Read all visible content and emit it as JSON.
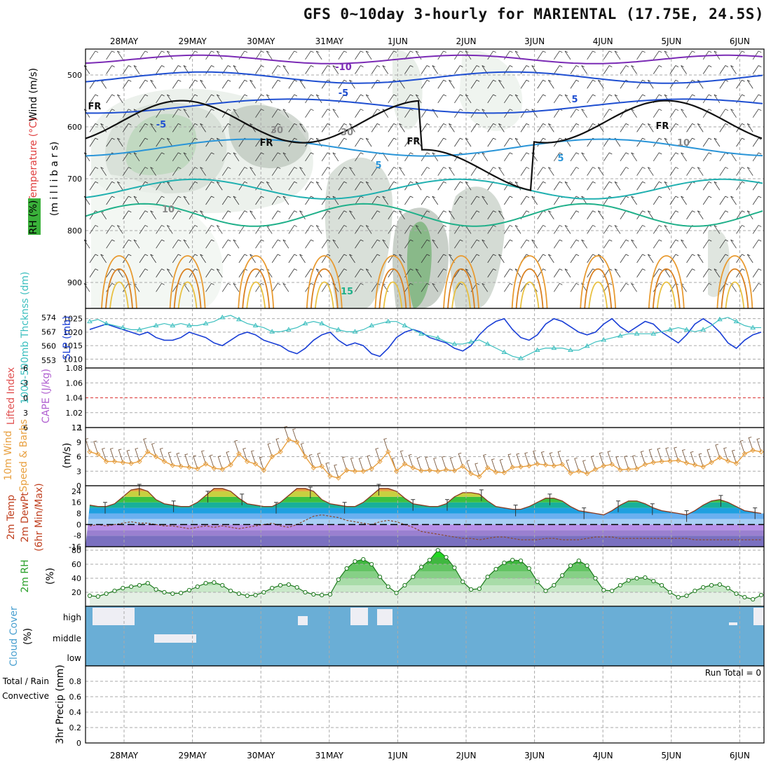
{
  "title": "GFS 0~10day 3-hourly for MARIENTAL (17.75E, 24.5S)",
  "dates": [
    "28MAY",
    "29MAY",
    "30MAY",
    "31MAY",
    "1JUN",
    "2JUN",
    "3JUN",
    "4JUN",
    "5JUN",
    "6JUN"
  ],
  "colors": {
    "grid": "#aaaaaa",
    "slp": "#1a3fd6",
    "thick": "#3cbfbf",
    "wind10": "#e8a040",
    "barb": "#7a5a40",
    "rh": "#2aa02a",
    "cloud": "#6aaed6",
    "cape": "#e05050",
    "freeze": "#111111"
  },
  "chart_data": [
    {
      "type": "contour",
      "panel": "upper-air",
      "labels": {
        "wind": "Wind (m/s)",
        "temp": "Temperature (°C)",
        "rh": "RH (%)",
        "pressure": "(m i l l i b a r s)"
      },
      "yticks": [
        "500",
        "600",
        "700",
        "800",
        "900"
      ],
      "ylim": [
        950,
        450
      ],
      "contour_labels": [
        "-10",
        "-5",
        "-5",
        "5",
        "5",
        "FR",
        "FR",
        "FR",
        "FR",
        "30",
        "30",
        "10",
        "10",
        "15",
        "5"
      ]
    },
    {
      "type": "line",
      "panel": "slp-thickness",
      "labels": {
        "left": "1000-500mb Thcknss (dm)",
        "right": "SLP (mb)"
      },
      "yticks_left": [
        "574",
        "567",
        "560",
        "553"
      ],
      "yticks_right": [
        "1025",
        "1020",
        "1015",
        "1010"
      ],
      "ylim_slp": [
        1008,
        1027
      ],
      "ylim_thick": [
        551,
        576
      ],
      "series": [
        {
          "name": "SLP (mb)",
          "values": [
            1021,
            1022,
            1023,
            1022,
            1021,
            1020,
            1019,
            1020,
            1018,
            1017,
            1017,
            1018,
            1020,
            1019,
            1018,
            1016,
            1015,
            1017,
            1019,
            1020,
            1019,
            1017,
            1016,
            1015,
            1013,
            1012,
            1014,
            1017,
            1019,
            1020,
            1017,
            1015,
            1016,
            1015,
            1012,
            1011,
            1014,
            1018,
            1020,
            1021,
            1020,
            1018,
            1017,
            1016,
            1014,
            1013,
            1015,
            1019,
            1022,
            1024,
            1025,
            1021,
            1018,
            1017,
            1019,
            1023,
            1025,
            1024,
            1022,
            1020,
            1019,
            1020,
            1023,
            1025,
            1022,
            1020,
            1022,
            1024,
            1023,
            1020,
            1018,
            1016,
            1019,
            1023,
            1025,
            1023,
            1020,
            1016,
            1014,
            1017,
            1019,
            1020
          ]
        },
        {
          "name": "Thickness (dm)",
          "values": [
            572,
            573,
            571,
            570,
            569,
            568,
            568,
            569,
            570,
            571,
            570,
            571,
            570,
            570,
            571,
            572,
            574,
            575,
            573,
            571,
            570,
            569,
            567,
            567,
            568,
            569,
            571,
            572,
            571,
            569,
            568,
            567,
            567,
            568,
            570,
            571,
            572,
            572,
            570,
            568,
            566,
            565,
            564,
            562,
            561,
            561,
            562,
            563,
            561,
            559,
            557,
            555,
            554,
            556,
            558,
            559,
            559,
            559,
            558,
            558,
            560,
            562,
            563,
            564,
            565,
            566,
            566,
            566,
            566,
            567,
            568,
            569,
            568,
            567,
            568,
            570,
            573,
            574,
            572,
            570,
            569,
            569
          ]
        }
      ]
    },
    {
      "type": "line",
      "panel": "instability",
      "labels": {
        "left": "Lifted Index",
        "right": "CAPE (J/kg)"
      },
      "yticks_left": [
        "-6",
        "-3",
        "0",
        "3",
        "6"
      ],
      "yticks_right": [
        "1.08",
        "1.06",
        "1.04",
        "1.02",
        "1"
      ],
      "series": [
        {
          "name": "Lifted Index",
          "values": [
            0
          ]
        }
      ]
    },
    {
      "type": "line",
      "panel": "wind10m",
      "labels": {
        "main": "10m Wind",
        "sub": "Speed & Barbs",
        "unit": "(m/s)"
      },
      "yticks": [
        "12",
        "9",
        "6",
        "3",
        "0"
      ],
      "ylim": [
        0,
        12
      ],
      "series": [
        {
          "name": "Speed",
          "values": [
            7,
            6.5,
            5,
            5,
            4.8,
            4.6,
            5,
            7,
            6,
            5,
            4.2,
            4,
            3.8,
            3.5,
            4.5,
            3.6,
            3.4,
            4.3,
            6.6,
            5,
            4.5,
            3.2,
            6,
            7,
            9.5,
            9,
            6,
            3.7,
            4,
            2,
            1.6,
            3.2,
            3,
            3,
            3.5,
            5,
            7,
            3,
            4.5,
            3.7,
            3.1,
            3.2,
            3,
            3.3,
            3.1,
            4,
            2.5,
            1.9,
            3.7,
            2.8,
            2.7,
            3.8,
            3.9,
            4.1,
            4.5,
            4.3,
            4.1,
            4.4,
            2.6,
            3,
            2.5,
            3.4,
            4.1,
            4.4,
            3.3,
            3.4,
            3.5,
            4.4,
            4.8,
            5,
            5.1,
            5.2,
            4.7,
            4.3,
            3.9,
            4.8,
            5.8,
            5.1,
            4.6,
            6.6,
            7.3,
            7
          ]
        }
      ]
    },
    {
      "type": "area",
      "panel": "temperature",
      "labels": {
        "main": "2m Temp",
        "sub": "2m DewPt",
        "sub2": "(6hr Min/Max)"
      },
      "yticks": [
        "24",
        "16",
        "8",
        "0",
        "-8",
        "-16"
      ],
      "ylim": [
        -16,
        28
      ],
      "series": [
        {
          "name": "2m Temp",
          "values": [
            14,
            13,
            13,
            15,
            20,
            25,
            26,
            24,
            18,
            15,
            14,
            13,
            13,
            16,
            21,
            26,
            26,
            24,
            19,
            15,
            14,
            13,
            13,
            16,
            21,
            26,
            26,
            24,
            18,
            15,
            14,
            13,
            13,
            16,
            21,
            26,
            26,
            24,
            19,
            15,
            14,
            13,
            13,
            15,
            20,
            23,
            23,
            22,
            17,
            13,
            12,
            11,
            11,
            13,
            16,
            19,
            19,
            17,
            13,
            10,
            9,
            8,
            7,
            10,
            14,
            17,
            17,
            15,
            12,
            10,
            9,
            8,
            7,
            10,
            14,
            17,
            18,
            16,
            13,
            10,
            9,
            8
          ]
        },
        {
          "name": "2m DewPt",
          "values": [
            -1,
            0,
            -1,
            0,
            1,
            2,
            1,
            1,
            0,
            -1,
            -1,
            -2,
            -3,
            -2,
            -1,
            -2,
            -1,
            -2,
            -3,
            -2,
            -1,
            0,
            1,
            -1,
            -2,
            0,
            3,
            6,
            7,
            6,
            5,
            3,
            2,
            1,
            0,
            2,
            3,
            2,
            0,
            -2,
            -5,
            -6,
            -7,
            -8,
            -9,
            -10,
            -10,
            -11,
            -10,
            -9,
            -9,
            -10,
            -11,
            -11,
            -11,
            -10,
            -10,
            -11,
            -11,
            -11,
            -10,
            -9,
            -9,
            -9,
            -10,
            -10,
            -10,
            -10,
            -10,
            -10,
            -10,
            -10,
            -10,
            -11,
            -11,
            -11,
            -11,
            -11,
            -11,
            -11,
            -11,
            -11
          ]
        }
      ]
    },
    {
      "type": "area",
      "panel": "rh2m",
      "labels": {
        "main": "2m RH",
        "unit": "(%)"
      },
      "yticks": [
        "80",
        "60",
        "40",
        "20"
      ],
      "ylim": [
        0,
        85
      ],
      "series": [
        {
          "name": "2m RH",
          "values": [
            15,
            14,
            18,
            22,
            26,
            28,
            30,
            33,
            24,
            20,
            18,
            19,
            23,
            28,
            33,
            34,
            30,
            22,
            18,
            15,
            16,
            20,
            26,
            30,
            31,
            27,
            20,
            17,
            16,
            17,
            38,
            54,
            64,
            67,
            60,
            42,
            28,
            19,
            30,
            42,
            56,
            66,
            80,
            70,
            55,
            35,
            24,
            25,
            42,
            53,
            62,
            66,
            65,
            54,
            35,
            22,
            30,
            44,
            58,
            65,
            58,
            40,
            23,
            22,
            30,
            37,
            40,
            41,
            36,
            30,
            20,
            13,
            15,
            22,
            27,
            30,
            31,
            26,
            18,
            13,
            10,
            16
          ]
        }
      ]
    },
    {
      "type": "heatmap",
      "panel": "cloud",
      "labels": {
        "main": "Cloud Cover",
        "unit": "(%)"
      },
      "rows": [
        "high",
        "middle",
        "low"
      ]
    },
    {
      "type": "bar",
      "panel": "precip",
      "labels": {
        "main": "3hr Precip (mm)",
        "total": "Total / Rain",
        "conv": "Convective",
        "run_total": "Run Total = 0"
      },
      "yticks": [
        "0.8",
        "0.6",
        "0.4",
        "0.2",
        "0"
      ],
      "ylim": [
        0,
        1
      ],
      "series": [
        {
          "name": "Total",
          "values": [
            0
          ]
        }
      ]
    }
  ]
}
